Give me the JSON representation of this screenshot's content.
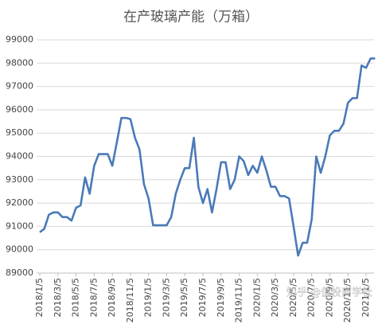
{
  "chart_data": {
    "type": "line",
    "title": "在产玻璃产能（万箱）",
    "categories": [
      "2018/1/5",
      null,
      null,
      null,
      "2018/3/5",
      null,
      null,
      null,
      "2018/5/5",
      null,
      null,
      null,
      "2018/7/5",
      null,
      null,
      null,
      "2018/9/5",
      null,
      null,
      null,
      "2018/11/5",
      null,
      null,
      null,
      "2019/1/5",
      null,
      null,
      null,
      "2019/3/5",
      null,
      null,
      null,
      "2019/5/5",
      null,
      null,
      null,
      "2019/7/5",
      null,
      null,
      null,
      "2019/9/5",
      null,
      null,
      null,
      "2019/11/5",
      null,
      null,
      null,
      "2020/1/5",
      null,
      null,
      null,
      "2020/3/5",
      null,
      null,
      null,
      "2020/5/5",
      null,
      null,
      null,
      "2020/7/5",
      null,
      null,
      null,
      "2020/9/5",
      null,
      null,
      null,
      "2020/11/5",
      null,
      null,
      null,
      "2021/1/5",
      null,
      null
    ],
    "values": [
      90750,
      90900,
      91500,
      91600,
      91600,
      91400,
      91400,
      91250,
      91800,
      91900,
      93100,
      92400,
      93600,
      94100,
      94100,
      94100,
      93600,
      94600,
      95650,
      95650,
      95600,
      94800,
      94300,
      92800,
      92200,
      91050,
      91050,
      91050,
      91050,
      91400,
      92400,
      93000,
      93500,
      93500,
      94800,
      92700,
      92000,
      92600,
      91600,
      92600,
      93750,
      93750,
      92600,
      93000,
      94000,
      93800,
      93200,
      93600,
      93300,
      94000,
      93400,
      92700,
      92700,
      92300,
      92300,
      92200,
      91000,
      89750,
      90300,
      90300,
      91300,
      94000,
      93300,
      94000,
      94900,
      95100,
      95100,
      95400,
      96300,
      96500,
      96500,
      97900,
      97800,
      98200,
      98200
    ],
    "color": "#4a7ab8",
    "ylim": [
      89000,
      99000
    ],
    "yticks": [
      89000,
      90000,
      91000,
      92000,
      93000,
      94000,
      95000,
      96000,
      97000,
      98000,
      99000
    ],
    "grid": true,
    "watermark": "知乎 @值投商学社"
  }
}
